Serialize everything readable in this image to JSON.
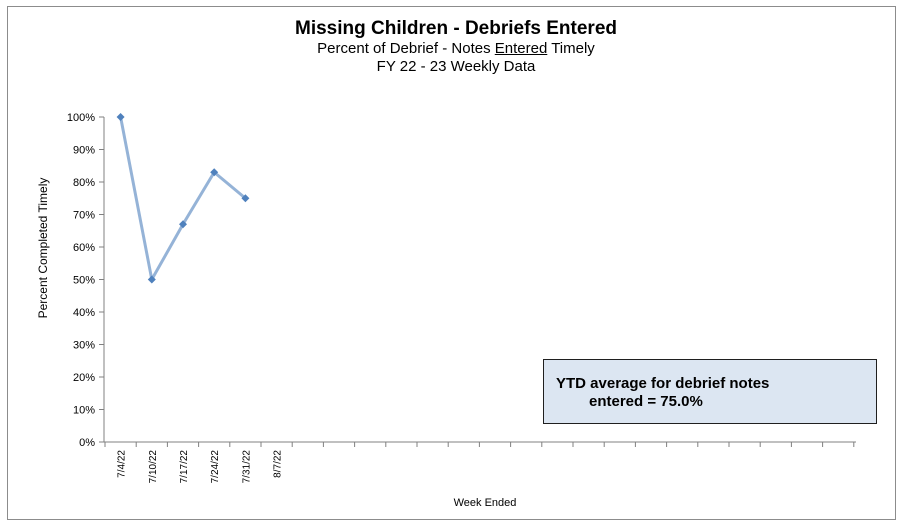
{
  "chart_data": {
    "type": "line",
    "title": "Missing Children - Debriefs Entered",
    "subtitle_parts": [
      "Percent of Debrief - Notes ",
      "Entered",
      " Timely"
    ],
    "subtitle2": "FY 22 - 23  Weekly Data",
    "xlabel": "Week Ended",
    "ylabel": "Percent Completed Timely",
    "categories": [
      "7/4/22",
      "7/10/22",
      "7/17/22",
      "7/24/22",
      "7/31/22",
      "8/7/22"
    ],
    "series": [
      {
        "values": [
          100,
          50,
          67,
          83,
          75,
          null
        ]
      }
    ],
    "ylim": [
      0,
      100
    ],
    "yticks": [
      "0%",
      "10%",
      "20%",
      "30%",
      "40%",
      "50%",
      "60%",
      "70%",
      "80%",
      "90%",
      "100%"
    ],
    "grid": false,
    "line_color": "#95b3d7",
    "marker_color": "#4f81bd",
    "annotation": {
      "line1": "YTD average for debrief notes",
      "line2": "entered = 75.0%"
    },
    "annotation_bg": "#dce6f2"
  }
}
